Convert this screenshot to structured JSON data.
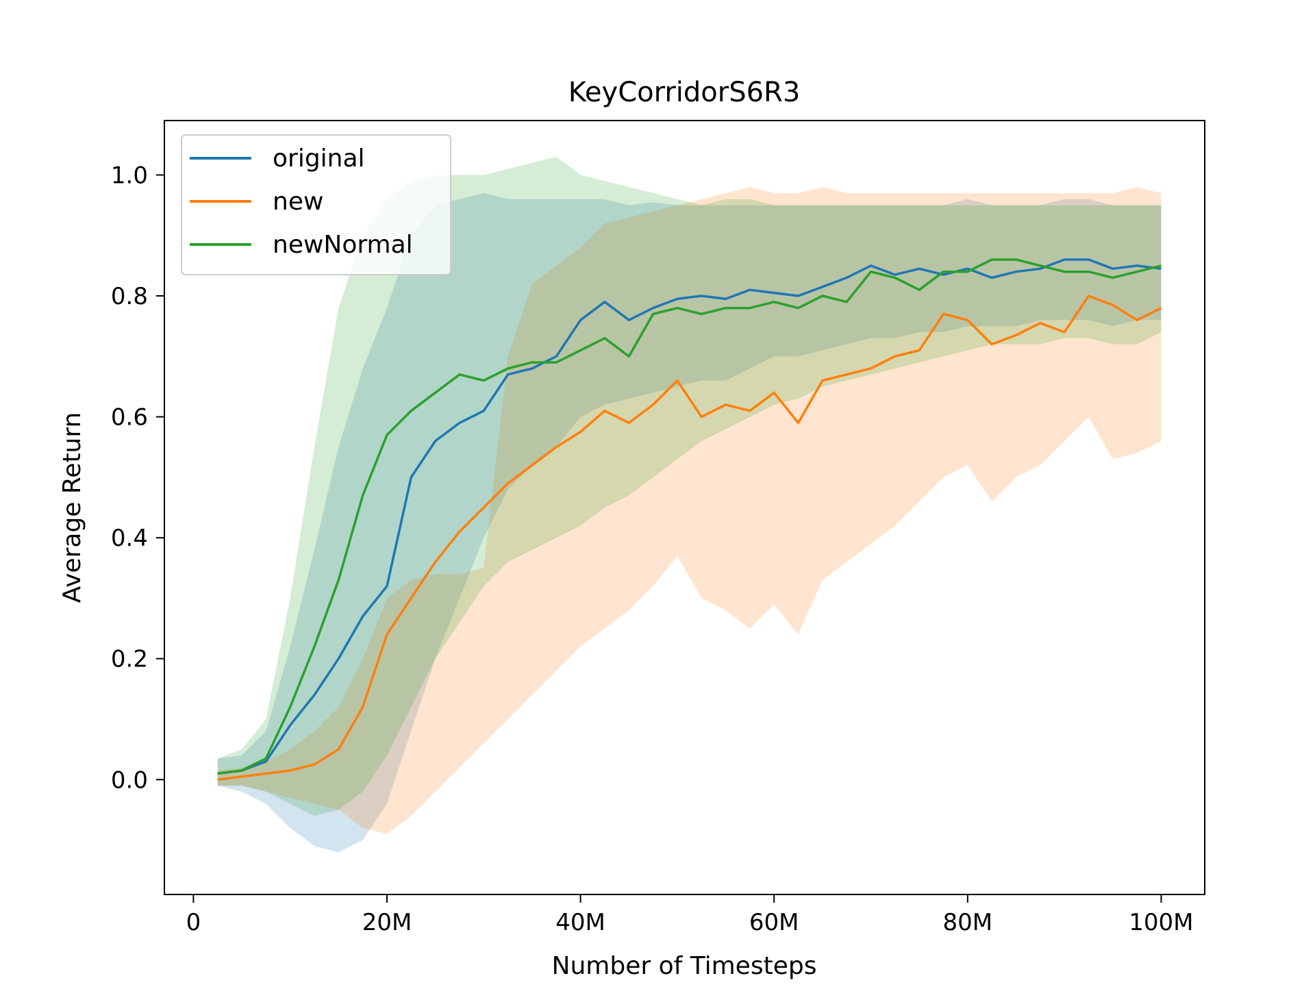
{
  "chart_data": {
    "type": "line",
    "title": "KeyCorridorS6R3",
    "xlabel": "Number of Timesteps",
    "ylabel": "Average Return",
    "xlim": [
      -3000000,
      104500000
    ],
    "ylim": [
      -0.19,
      1.09
    ],
    "x_ticks": [
      {
        "value": 0,
        "label": "0"
      },
      {
        "value": 20000000,
        "label": "20M"
      },
      {
        "value": 40000000,
        "label": "40M"
      },
      {
        "value": 60000000,
        "label": "60M"
      },
      {
        "value": 80000000,
        "label": "80M"
      },
      {
        "value": 100000000,
        "label": "100M"
      }
    ],
    "y_ticks": [
      {
        "value": 0.0,
        "label": "0.0"
      },
      {
        "value": 0.2,
        "label": "0.2"
      },
      {
        "value": 0.4,
        "label": "0.4"
      },
      {
        "value": 0.6,
        "label": "0.6"
      },
      {
        "value": 0.8,
        "label": "0.8"
      },
      {
        "value": 1.0,
        "label": "1.0"
      }
    ],
    "grid": false,
    "legend_position": "top-left",
    "band": "shaded min-max range across runs",
    "series": [
      {
        "name": "original",
        "color": "#1f77b4",
        "x": [
          2.5,
          5,
          7.5,
          10,
          12.5,
          15,
          17.5,
          20,
          22.5,
          25,
          27.5,
          30,
          32.5,
          35,
          37.5,
          40,
          42.5,
          45,
          47.5,
          50,
          52.5,
          55,
          57.5,
          60,
          62.5,
          65,
          67.5,
          70,
          72.5,
          75,
          77.5,
          80,
          82.5,
          85,
          87.5,
          90,
          92.5,
          95,
          97.5,
          100
        ],
        "values": [
          0.01,
          0.015,
          0.03,
          0.09,
          0.14,
          0.2,
          0.27,
          0.32,
          0.5,
          0.56,
          0.59,
          0.61,
          0.67,
          0.68,
          0.7,
          0.76,
          0.79,
          0.76,
          0.78,
          0.795,
          0.8,
          0.795,
          0.81,
          0.805,
          0.8,
          0.815,
          0.83,
          0.85,
          0.835,
          0.845,
          0.835,
          0.845,
          0.83,
          0.84,
          0.845,
          0.86,
          0.86,
          0.845,
          0.85,
          0.845
        ],
        "lower": [
          -0.01,
          -0.02,
          -0.04,
          -0.08,
          -0.11,
          -0.12,
          -0.1,
          -0.04,
          0.08,
          0.2,
          0.3,
          0.4,
          0.48,
          0.52,
          0.55,
          0.6,
          0.62,
          0.63,
          0.64,
          0.65,
          0.66,
          0.66,
          0.68,
          0.7,
          0.7,
          0.71,
          0.72,
          0.73,
          0.73,
          0.74,
          0.74,
          0.75,
          0.75,
          0.75,
          0.76,
          0.76,
          0.76,
          0.75,
          0.76,
          0.76
        ],
        "upper": [
          0.035,
          0.04,
          0.08,
          0.22,
          0.38,
          0.55,
          0.68,
          0.78,
          0.9,
          0.95,
          0.96,
          0.97,
          0.96,
          0.96,
          0.96,
          0.96,
          0.96,
          0.95,
          0.955,
          0.95,
          0.95,
          0.95,
          0.95,
          0.95,
          0.95,
          0.95,
          0.95,
          0.95,
          0.95,
          0.95,
          0.95,
          0.96,
          0.95,
          0.95,
          0.95,
          0.96,
          0.96,
          0.95,
          0.95,
          0.95
        ]
      },
      {
        "name": "new",
        "color": "#ff7f0e",
        "x": [
          2.5,
          5,
          7.5,
          10,
          12.5,
          15,
          17.5,
          20,
          22.5,
          25,
          27.5,
          30,
          32.5,
          35,
          37.5,
          40,
          42.5,
          45,
          47.5,
          50,
          52.5,
          55,
          57.5,
          60,
          62.5,
          65,
          67.5,
          70,
          72.5,
          75,
          77.5,
          80,
          82.5,
          85,
          87.5,
          90,
          92.5,
          95,
          97.5,
          100
        ],
        "values": [
          0.0,
          0.005,
          0.01,
          0.015,
          0.025,
          0.05,
          0.12,
          0.24,
          0.3,
          0.36,
          0.41,
          0.45,
          0.49,
          0.52,
          0.55,
          0.575,
          0.61,
          0.59,
          0.62,
          0.66,
          0.6,
          0.62,
          0.61,
          0.64,
          0.59,
          0.66,
          0.67,
          0.68,
          0.7,
          0.71,
          0.77,
          0.76,
          0.72,
          0.735,
          0.755,
          0.74,
          0.8,
          0.785,
          0.76,
          0.78
        ],
        "lower": [
          -0.01,
          -0.01,
          -0.02,
          -0.03,
          -0.04,
          -0.05,
          -0.08,
          -0.09,
          -0.06,
          -0.02,
          0.02,
          0.06,
          0.1,
          0.14,
          0.18,
          0.22,
          0.25,
          0.28,
          0.32,
          0.37,
          0.3,
          0.28,
          0.25,
          0.29,
          0.24,
          0.33,
          0.36,
          0.39,
          0.42,
          0.46,
          0.5,
          0.52,
          0.46,
          0.5,
          0.52,
          0.56,
          0.6,
          0.53,
          0.54,
          0.56
        ],
        "upper": [
          0.015,
          0.02,
          0.03,
          0.05,
          0.08,
          0.12,
          0.2,
          0.3,
          0.33,
          0.34,
          0.34,
          0.35,
          0.7,
          0.82,
          0.85,
          0.88,
          0.92,
          0.93,
          0.94,
          0.95,
          0.96,
          0.97,
          0.98,
          0.97,
          0.97,
          0.98,
          0.97,
          0.97,
          0.97,
          0.97,
          0.97,
          0.97,
          0.97,
          0.97,
          0.97,
          0.97,
          0.97,
          0.97,
          0.98,
          0.97
        ]
      },
      {
        "name": "newNormal",
        "color": "#2ca02c",
        "x": [
          2.5,
          5,
          7.5,
          10,
          12.5,
          15,
          17.5,
          20,
          22.5,
          25,
          27.5,
          30,
          32.5,
          35,
          37.5,
          40,
          42.5,
          45,
          47.5,
          50,
          52.5,
          55,
          57.5,
          60,
          62.5,
          65,
          67.5,
          70,
          72.5,
          75,
          77.5,
          80,
          82.5,
          85,
          87.5,
          90,
          92.5,
          95,
          97.5,
          100
        ],
        "values": [
          0.01,
          0.015,
          0.035,
          0.12,
          0.22,
          0.33,
          0.47,
          0.57,
          0.61,
          0.64,
          0.67,
          0.66,
          0.68,
          0.69,
          0.69,
          0.71,
          0.73,
          0.7,
          0.77,
          0.78,
          0.77,
          0.78,
          0.78,
          0.79,
          0.78,
          0.8,
          0.79,
          0.84,
          0.83,
          0.81,
          0.84,
          0.84,
          0.86,
          0.86,
          0.85,
          0.84,
          0.84,
          0.83,
          0.84,
          0.85
        ],
        "lower": [
          -0.01,
          -0.01,
          -0.02,
          -0.04,
          -0.06,
          -0.05,
          -0.02,
          0.04,
          0.12,
          0.2,
          0.26,
          0.32,
          0.36,
          0.38,
          0.4,
          0.42,
          0.45,
          0.47,
          0.5,
          0.53,
          0.56,
          0.58,
          0.6,
          0.62,
          0.63,
          0.65,
          0.66,
          0.67,
          0.68,
          0.69,
          0.7,
          0.71,
          0.72,
          0.72,
          0.72,
          0.73,
          0.73,
          0.72,
          0.72,
          0.74
        ],
        "upper": [
          0.035,
          0.05,
          0.1,
          0.3,
          0.55,
          0.78,
          0.9,
          0.96,
          0.99,
          1.0,
          1.0,
          1.0,
          1.01,
          1.02,
          1.03,
          1.0,
          0.99,
          0.98,
          0.97,
          0.96,
          0.95,
          0.96,
          0.96,
          0.95,
          0.95,
          0.95,
          0.95,
          0.95,
          0.95,
          0.95,
          0.95,
          0.95,
          0.95,
          0.95,
          0.95,
          0.95,
          0.95,
          0.95,
          0.95,
          0.95
        ]
      }
    ],
    "x_unit_scale": "values in millions of timesteps"
  }
}
